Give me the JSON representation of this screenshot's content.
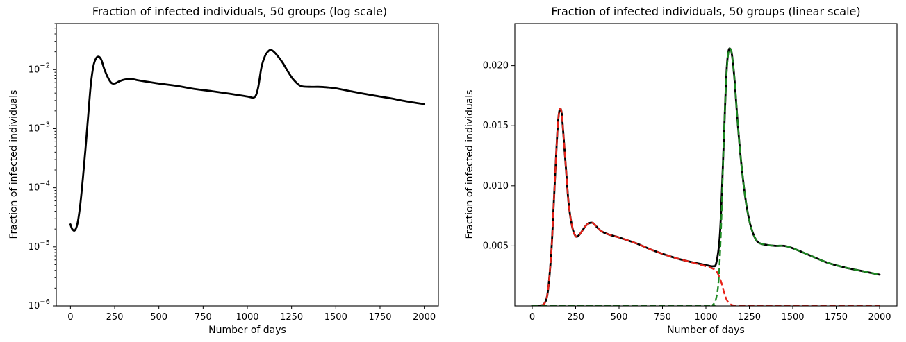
{
  "chart_data": [
    {
      "type": "line",
      "title": "Fraction of infected individuals, 50 groups  (log scale)",
      "xlabel": "Number of days",
      "ylabel": "Fraction of infected individuals",
      "xlim": [
        -80,
        2080
      ],
      "ylim": [
        1e-06,
        0.06
      ],
      "yscale": "log",
      "grid": false,
      "xticks": [
        0,
        250,
        500,
        750,
        1000,
        1250,
        1500,
        1750,
        2000
      ],
      "yticks": [
        1e-06,
        1e-05,
        0.0001,
        0.001,
        0.01
      ],
      "ytick_labels": [
        "10^-6",
        "10^-5",
        "10^-4",
        "10^-3",
        "10^-2"
      ],
      "series": [
        {
          "color": "#000000",
          "dash": "solid",
          "x": [
            0,
            10,
            25,
            40,
            55,
            70,
            85,
            100,
            115,
            130,
            145,
            160,
            175,
            190,
            210,
            230,
            250,
            280,
            310,
            340,
            360,
            380,
            420,
            500,
            600,
            700,
            800,
            900,
            1000,
            1040,
            1060,
            1080,
            1100,
            1120,
            1135,
            1150,
            1170,
            1200,
            1230,
            1260,
            1300,
            1350,
            1400,
            1450,
            1500,
            1600,
            1700,
            1800,
            1900,
            2000
          ],
          "y": [
            2.4e-05,
            2e-05,
            1.9e-05,
            2.5e-05,
            5e-05,
            0.00014,
            0.00045,
            0.0016,
            0.0055,
            0.0115,
            0.0155,
            0.0165,
            0.0145,
            0.0105,
            0.0075,
            0.006,
            0.0058,
            0.0064,
            0.0068,
            0.0069,
            0.0068,
            0.0066,
            0.0063,
            0.0058,
            0.0053,
            0.0047,
            0.0043,
            0.0039,
            0.0035,
            0.0034,
            0.0048,
            0.011,
            0.017,
            0.0207,
            0.0214,
            0.02,
            0.0172,
            0.013,
            0.0092,
            0.0068,
            0.0053,
            0.0051,
            0.0051,
            0.005,
            0.0048,
            0.0042,
            0.0037,
            0.0033,
            0.0029,
            0.0026
          ]
        }
      ]
    },
    {
      "type": "line",
      "title": "Fraction of infected individuals, 50 groups  (linear scale)",
      "xlabel": "Number of days",
      "ylabel": "Fraction of infected individuals",
      "xlim": [
        -100,
        2100
      ],
      "ylim": [
        0,
        0.0235
      ],
      "grid": false,
      "xticks": [
        0,
        250,
        500,
        750,
        1000,
        1250,
        1500,
        1750,
        2000
      ],
      "yticks": [
        0.005,
        0.01,
        0.015,
        0.02
      ],
      "ytick_labels": [
        "0.005",
        "0.010",
        "0.015",
        "0.020"
      ],
      "series": [
        {
          "color": "#000000",
          "dash": "solid",
          "x": [
            0,
            40,
            70,
            90,
            110,
            125,
            140,
            150,
            160,
            170,
            180,
            195,
            210,
            230,
            250,
            270,
            290,
            310,
            330,
            350,
            370,
            400,
            450,
            500,
            600,
            700,
            800,
            900,
            1000,
            1040,
            1060,
            1080,
            1095,
            1110,
            1120,
            1130,
            1140,
            1150,
            1165,
            1180,
            1200,
            1225,
            1250,
            1275,
            1300,
            1340,
            1400,
            1450,
            1500,
            1600,
            1700,
            1800,
            1900,
            2000
          ],
          "y": [
            2.4e-05,
            3e-05,
            0.0002,
            0.0012,
            0.0045,
            0.0088,
            0.0132,
            0.0155,
            0.0164,
            0.016,
            0.0142,
            0.0113,
            0.0085,
            0.0066,
            0.0058,
            0.0059,
            0.0063,
            0.0067,
            0.0069,
            0.0069,
            0.0066,
            0.0062,
            0.0059,
            0.0057,
            0.0052,
            0.0046,
            0.0041,
            0.0037,
            0.0034,
            0.0033,
            0.0036,
            0.0058,
            0.0106,
            0.0165,
            0.0198,
            0.0212,
            0.0214,
            0.0209,
            0.0188,
            0.0158,
            0.0124,
            0.0092,
            0.0071,
            0.0059,
            0.0053,
            0.0051,
            0.005,
            0.005,
            0.0048,
            0.0042,
            0.0036,
            0.0032,
            0.0029,
            0.0026
          ]
        },
        {
          "color": "#e8231a",
          "dash": "dashed",
          "x": [
            0,
            40,
            70,
            90,
            110,
            125,
            140,
            150,
            160,
            170,
            180,
            195,
            210,
            230,
            250,
            270,
            290,
            310,
            330,
            350,
            370,
            400,
            450,
            500,
            600,
            700,
            800,
            900,
            1000,
            1040,
            1060,
            1075,
            1090,
            1105,
            1120,
            1140,
            1170,
            1250,
            1500,
            2000
          ],
          "y": [
            2.4e-05,
            3e-05,
            0.0002,
            0.0012,
            0.0045,
            0.0088,
            0.0132,
            0.0155,
            0.0164,
            0.016,
            0.0142,
            0.0113,
            0.0085,
            0.0066,
            0.0058,
            0.0059,
            0.0063,
            0.0067,
            0.0069,
            0.0069,
            0.0066,
            0.0062,
            0.0059,
            0.0057,
            0.0052,
            0.0046,
            0.0041,
            0.0037,
            0.0033,
            0.0031,
            0.0029,
            0.0025,
            0.0019,
            0.0011,
            0.0005,
            0.00015,
            3e-05,
            1e-05,
            1e-05,
            1e-05
          ]
        },
        {
          "color": "#1e8a23",
          "dash": "dashed",
          "x": [
            0,
            500,
            1000,
            1040,
            1060,
            1075,
            1090,
            1100,
            1110,
            1120,
            1130,
            1140,
            1150,
            1165,
            1180,
            1200,
            1225,
            1250,
            1275,
            1300,
            1340,
            1400,
            1450,
            1500,
            1600,
            1700,
            1800,
            1900,
            2000
          ],
          "y": [
            1e-05,
            1e-05,
            1e-05,
            0.0001,
            0.0007,
            0.0025,
            0.0075,
            0.0125,
            0.0165,
            0.0196,
            0.0211,
            0.0214,
            0.0209,
            0.0188,
            0.0158,
            0.0124,
            0.0092,
            0.0071,
            0.0059,
            0.0053,
            0.0051,
            0.005,
            0.005,
            0.0048,
            0.0042,
            0.0036,
            0.0032,
            0.0029,
            0.0026
          ]
        }
      ]
    }
  ]
}
